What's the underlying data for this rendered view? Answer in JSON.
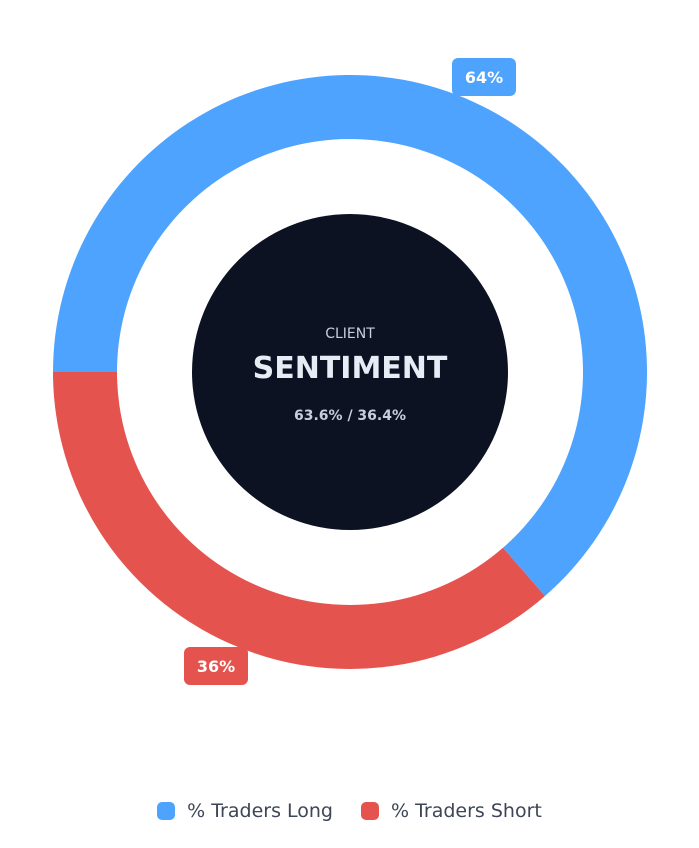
{
  "chart_data": {
    "type": "pie",
    "variant": "donut",
    "categories": [
      "% Traders Long",
      "% Traders Short"
    ],
    "values": [
      63.6,
      36.4
    ],
    "slice_labels": [
      "64%",
      "36%"
    ],
    "colors": [
      "#4ea3ff",
      "#e5534f"
    ],
    "center": {
      "kicker": "CLIENT",
      "title": "SENTIMENT",
      "ratio": "63.6% / 36.4%"
    },
    "legend": {
      "placement": "bottom",
      "items": [
        {
          "label": "% Traders Long",
          "color": "#4ea3ff"
        },
        {
          "label": "% Traders Short",
          "color": "#e5534f"
        }
      ]
    }
  },
  "theme": {
    "center_fill": "#0c1222"
  }
}
